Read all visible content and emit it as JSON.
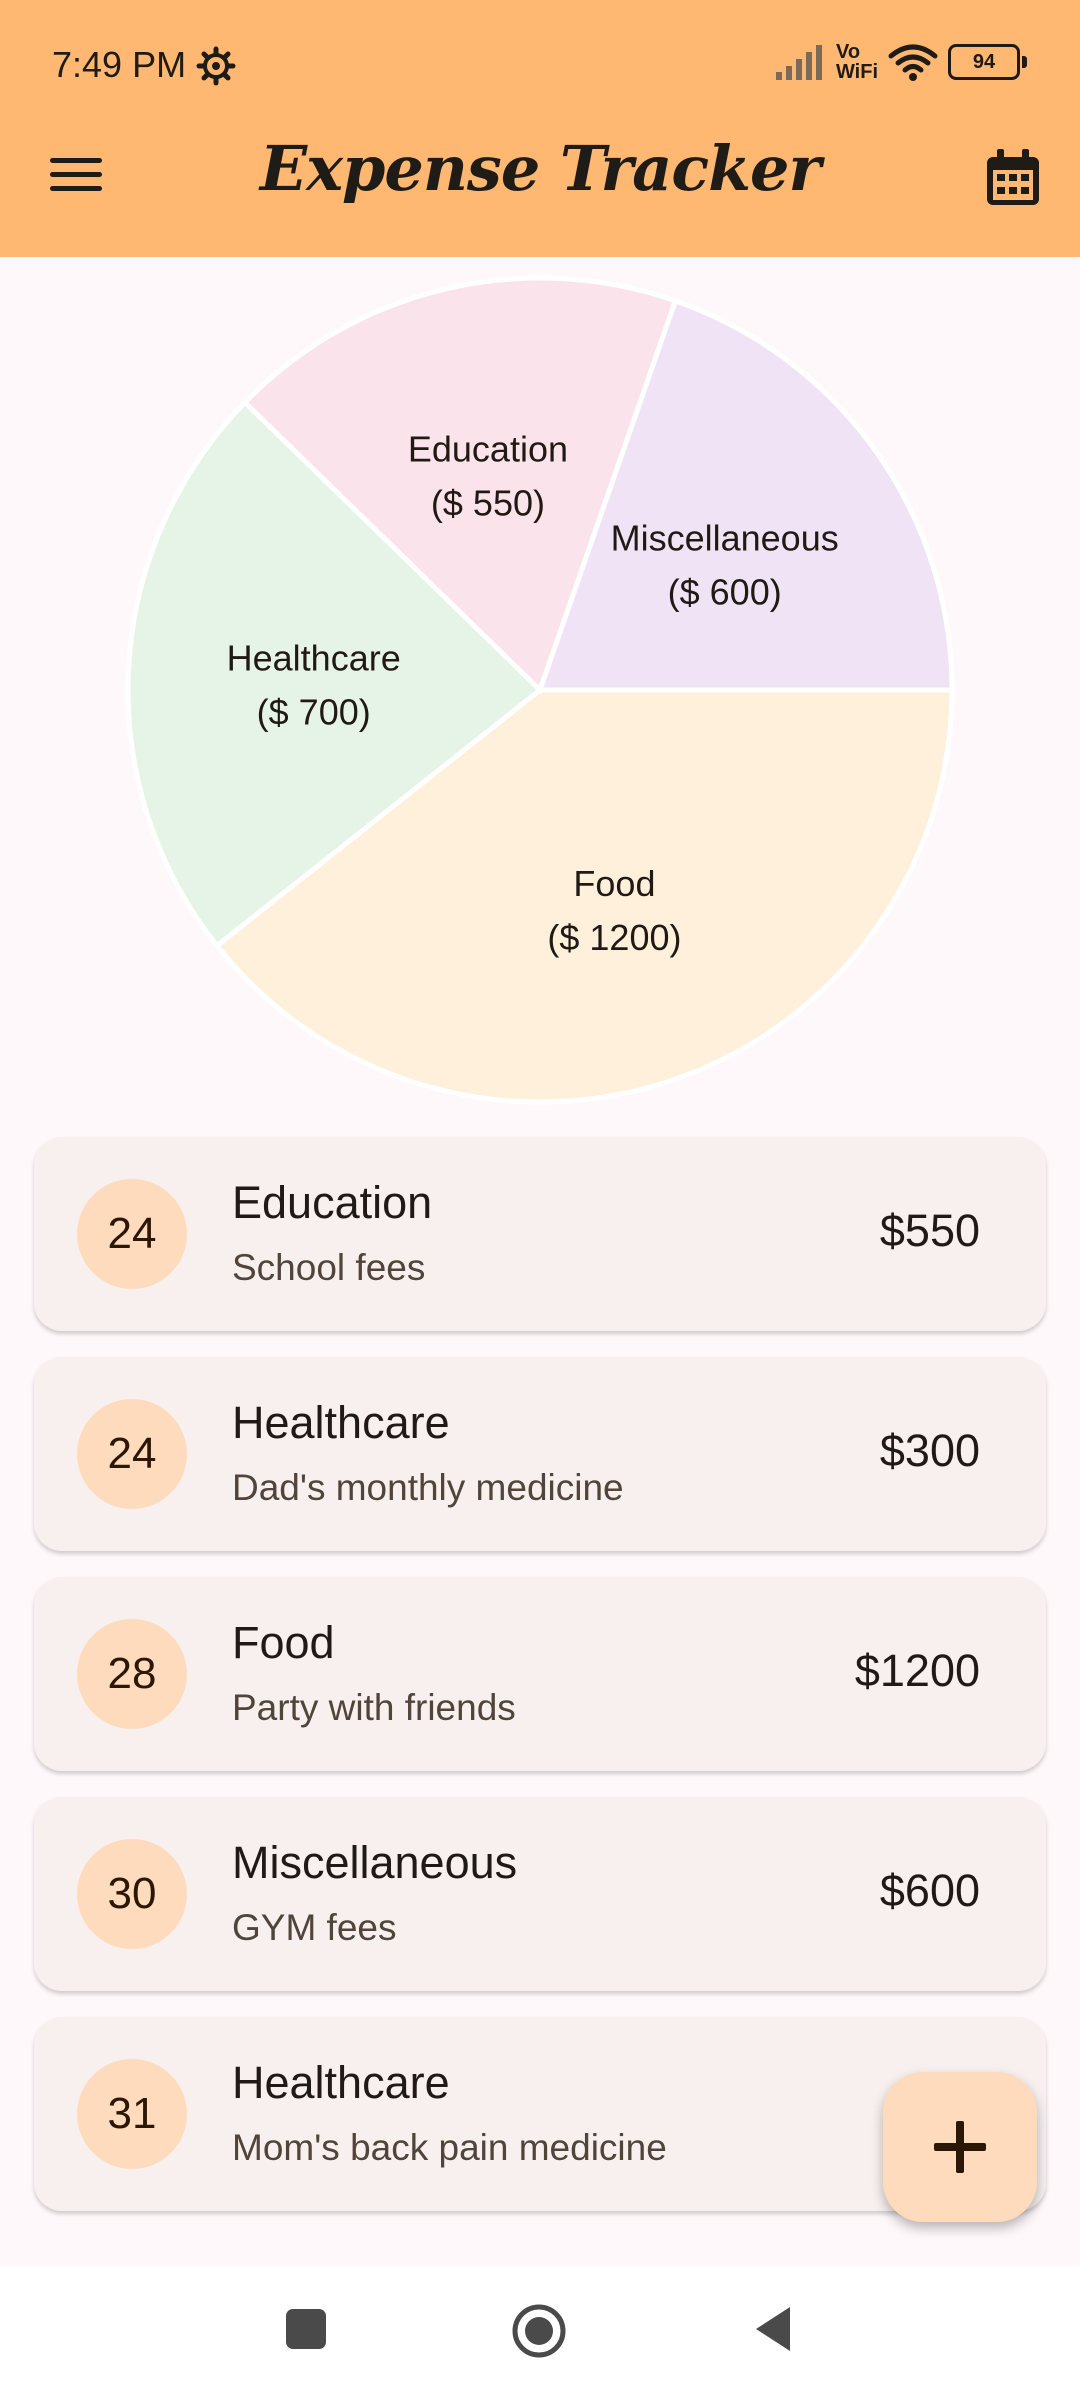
{
  "status_bar": {
    "time": "7:49 PM",
    "vowifi_top": "Vo",
    "vowifi_bottom": "WiFi",
    "battery": "94"
  },
  "app_bar": {
    "title": "Expense Tracker",
    "menu_icon": "hamburger-menu-icon",
    "calendar_icon": "calendar-icon",
    "background": "#ffb872"
  },
  "chart_data": {
    "type": "pie",
    "slices": [
      {
        "label": "Food",
        "value_label": "($ 1200)",
        "value": 1200,
        "color": "#fff0dc"
      },
      {
        "label": "Healthcare",
        "value_label": "($ 700)",
        "value": 700,
        "color": "#e6f4e7"
      },
      {
        "label": "Education",
        "value_label": "($ 550)",
        "value": 550,
        "color": "#fae3ea"
      },
      {
        "label": "Miscellaneous",
        "value_label": "($ 600)",
        "value": 600,
        "color": "#efe3f5"
      }
    ]
  },
  "expenses": [
    {
      "day": "24",
      "category": "Education",
      "description": "School fees",
      "amount": "$550"
    },
    {
      "day": "24",
      "category": "Healthcare",
      "description": "Dad's monthly medicine",
      "amount": "$300"
    },
    {
      "day": "28",
      "category": "Food",
      "description": "Party with friends",
      "amount": "$1200"
    },
    {
      "day": "30",
      "category": "Miscellaneous",
      "description": "GYM fees",
      "amount": "$600"
    },
    {
      "day": "31",
      "category": "Healthcare",
      "description": "Mom's back pain medicine",
      "amount": "$"
    }
  ],
  "fab": {
    "icon": "plus-icon"
  },
  "nav_bar": {
    "buttons": [
      "recents-square-icon",
      "home-circle-icon",
      "back-triangle-icon"
    ]
  }
}
